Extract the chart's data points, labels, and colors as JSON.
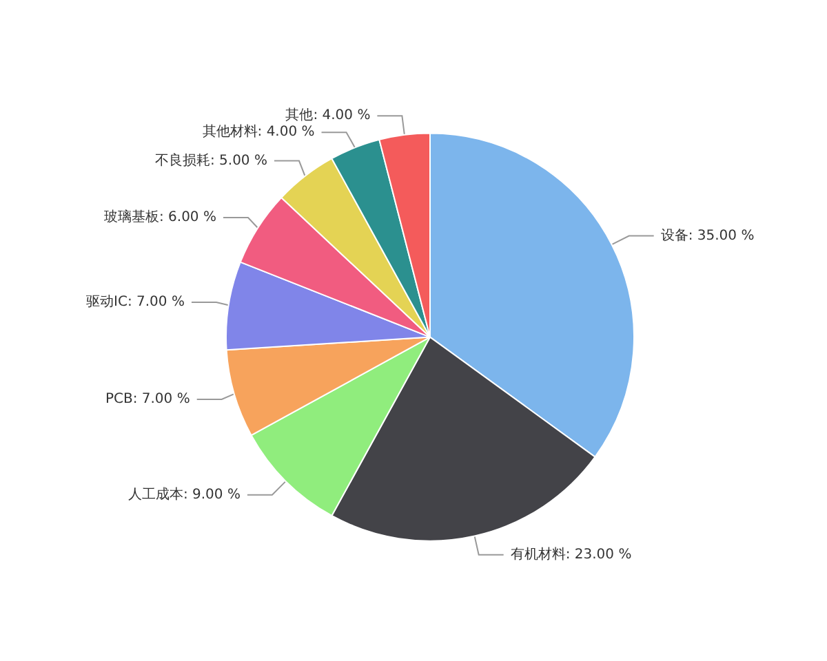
{
  "chart_data": {
    "type": "pie",
    "categories": [
      "设备",
      "有机材料",
      "人工成本",
      "PCB",
      "驱动IC",
      "玻璃基板",
      "不良损耗",
      "其他材料",
      "其他"
    ],
    "values": [
      35,
      23,
      9,
      7,
      7,
      6,
      5,
      4,
      4
    ],
    "value_labels": [
      "35.00 %",
      "23.00 %",
      "9.00 %",
      "7.00 %",
      "7.00 %",
      "6.00 %",
      "5.00 %",
      "4.00 %",
      "4.00 %"
    ],
    "colors": [
      "#7cb5ec",
      "#434348",
      "#90ed7d",
      "#f7a35c",
      "#8085e9",
      "#f15c80",
      "#e4d354",
      "#2b908f",
      "#f45b5b"
    ],
    "legend": false
  }
}
